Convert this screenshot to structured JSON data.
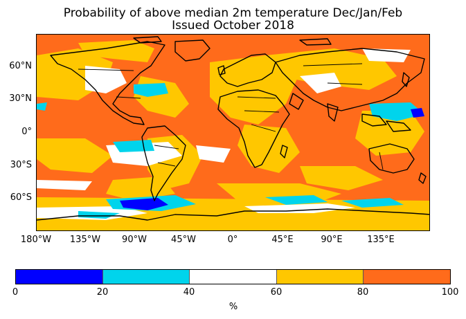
{
  "title_line1": "Probability of above median 2m temperature Dec/Jan/Feb",
  "title_line2": "Issued October 2018",
  "lat_labels": [
    "60°N",
    "30°N",
    "0°",
    "30°S",
    "60°S"
  ],
  "lon_labels": [
    "180°W",
    "135°W",
    "90°W",
    "45°W",
    "0°",
    "45°E",
    "90°E",
    "135°E"
  ],
  "colorbar": {
    "ticks": [
      "0",
      "20",
      "40",
      "60",
      "80",
      "100"
    ],
    "unit": "%",
    "colors": [
      "#0000ff",
      "#00d4ec",
      "#ffffff",
      "#ffc700",
      "#ff6b1b"
    ]
  },
  "map_colors": {
    "ocean_base": "#ff6b1b",
    "band_60_80": "#ffc700",
    "band_40_60": "#ffffff",
    "band_20_40": "#00d4ec",
    "band_0_20": "#0000ff",
    "coastline": "#000000"
  }
}
